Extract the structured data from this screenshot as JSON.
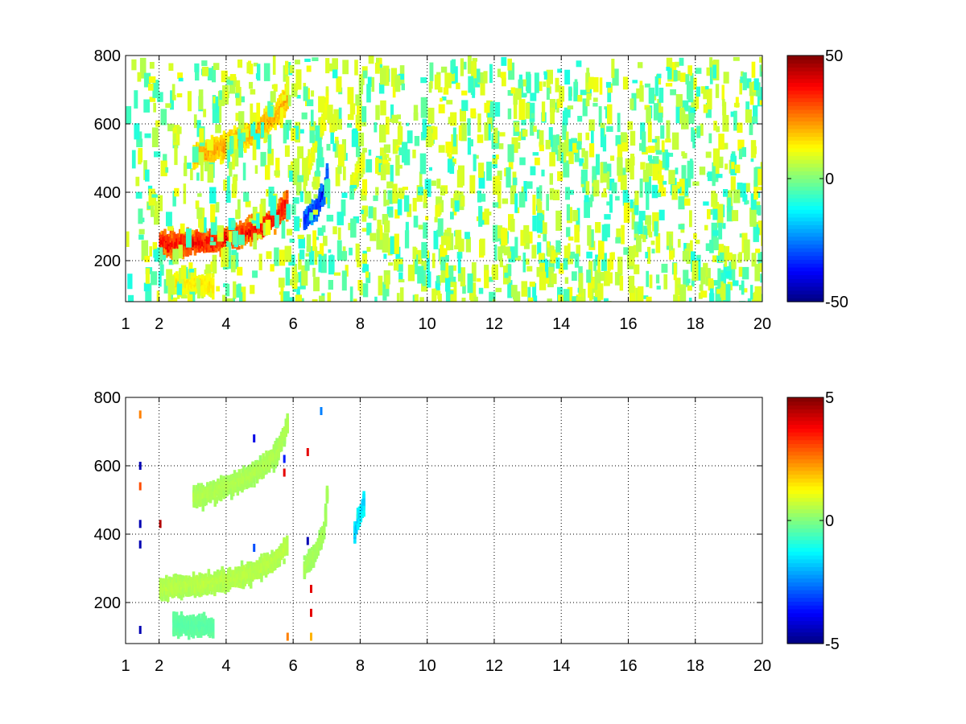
{
  "chart_data": [
    {
      "type": "heatmap",
      "title": "",
      "xlabel": "",
      "ylabel": "",
      "xlim": [
        1,
        20
      ],
      "ylim": [
        80,
        800
      ],
      "xticks": [
        1,
        2,
        4,
        6,
        8,
        10,
        12,
        14,
        16,
        18,
        20
      ],
      "xtick_labels": [
        "1",
        "2",
        "4",
        "6",
        "8",
        "10",
        "12",
        "14",
        "16",
        "18",
        "20"
      ],
      "yticks": [
        200,
        400,
        600,
        800
      ],
      "ytick_labels": [
        "200",
        "400",
        "600",
        "800"
      ],
      "grid": true,
      "colormap": "jet",
      "clim": [
        -50,
        50
      ],
      "colorbar_ticks": [
        -50,
        0,
        50
      ],
      "colorbar_tick_labels": [
        "-50",
        "0",
        "50"
      ],
      "features": [
        {
          "x": [
            2.0,
            2.5,
            3.0,
            3.5,
            4.0,
            4.5,
            5.0,
            5.5,
            5.8
          ],
          "y": [
            250,
            250,
            250,
            255,
            265,
            280,
            300,
            330,
            370
          ],
          "value": 38
        },
        {
          "x": [
            3.0,
            3.5,
            4.0,
            4.5,
            5.0,
            5.5,
            5.8
          ],
          "y": [
            505,
            520,
            540,
            560,
            590,
            630,
            680
          ],
          "value": 22
        },
        {
          "x": [
            2.4,
            2.8,
            3.2,
            3.6
          ],
          "y": [
            135,
            132,
            130,
            130
          ],
          "value": 15
        },
        {
          "x": [
            6.3,
            6.5,
            6.7,
            6.9,
            7.0
          ],
          "y": [
            320,
            340,
            360,
            400,
            460
          ],
          "value": -35
        },
        {
          "x": [
            6.3,
            6.5,
            6.7,
            6.9,
            7.0
          ],
          "y": [
            450,
            500,
            560,
            620,
            700
          ],
          "value": 12
        },
        {
          "x": [
            7.7,
            7.8,
            7.9,
            8.0,
            8.1
          ],
          "y": [
            420,
            440,
            460,
            480,
            500
          ],
          "value": 12
        }
      ],
      "noise_value_range": [
        -10,
        12
      ]
    },
    {
      "type": "heatmap",
      "title": "",
      "xlabel": "",
      "ylabel": "",
      "xlim": [
        1,
        20
      ],
      "ylim": [
        80,
        800
      ],
      "xticks": [
        1,
        2,
        4,
        6,
        8,
        10,
        12,
        14,
        16,
        18,
        20
      ],
      "xtick_labels": [
        "1",
        "2",
        "4",
        "6",
        "8",
        "10",
        "12",
        "14",
        "16",
        "18",
        "20"
      ],
      "yticks": [
        200,
        400,
        600,
        800
      ],
      "ytick_labels": [
        "200",
        "400",
        "600",
        "800"
      ],
      "grid": true,
      "colormap": "jet",
      "clim": [
        -5,
        5
      ],
      "colorbar_ticks": [
        -5,
        0,
        5
      ],
      "colorbar_tick_labels": [
        "-5",
        "0",
        "5"
      ],
      "features": [
        {
          "x": [
            2.0,
            2.5,
            3.0,
            3.5,
            4.0,
            4.5,
            5.0,
            5.5,
            5.8
          ],
          "y": [
            240,
            245,
            250,
            255,
            265,
            280,
            300,
            330,
            370
          ],
          "value": 0.6
        },
        {
          "x": [
            3.0,
            3.5,
            4.0,
            4.5,
            5.0,
            5.5,
            5.8
          ],
          "y": [
            505,
            520,
            540,
            560,
            590,
            640,
            720
          ],
          "value": 0.5
        },
        {
          "x": [
            2.4,
            2.8,
            3.2,
            3.6
          ],
          "y": [
            135,
            132,
            130,
            130
          ],
          "value": -0.4
        },
        {
          "x": [
            6.3,
            6.5,
            6.7,
            6.9,
            7.0
          ],
          "y": [
            300,
            330,
            360,
            420,
            550
          ],
          "value": 0.4
        },
        {
          "x": [
            7.8,
            7.9,
            8.0,
            8.1
          ],
          "y": [
            400,
            440,
            470,
            500
          ],
          "value": -1.8
        }
      ],
      "speckles": [
        {
          "x": 1.4,
          "y": 750,
          "value": 2.5
        },
        {
          "x": 1.4,
          "y": 600,
          "value": -4.5
        },
        {
          "x": 1.4,
          "y": 540,
          "value": 3.0
        },
        {
          "x": 1.4,
          "y": 430,
          "value": -4.5
        },
        {
          "x": 1.4,
          "y": 370,
          "value": -4.5
        },
        {
          "x": 1.4,
          "y": 120,
          "value": -4.5
        },
        {
          "x": 2.0,
          "y": 430,
          "value": 4.5
        },
        {
          "x": 4.8,
          "y": 680,
          "value": -4.0
        },
        {
          "x": 4.8,
          "y": 360,
          "value": -3.0
        },
        {
          "x": 5.7,
          "y": 580,
          "value": 4.0
        },
        {
          "x": 5.7,
          "y": 620,
          "value": -3.5
        },
        {
          "x": 5.8,
          "y": 100,
          "value": 2.5
        },
        {
          "x": 6.4,
          "y": 640,
          "value": 4.0
        },
        {
          "x": 6.4,
          "y": 380,
          "value": -4.5
        },
        {
          "x": 6.5,
          "y": 240,
          "value": 4.0
        },
        {
          "x": 6.5,
          "y": 170,
          "value": 4.0
        },
        {
          "x": 6.5,
          "y": 100,
          "value": 2.0
        },
        {
          "x": 6.8,
          "y": 760,
          "value": -2.5
        }
      ]
    }
  ]
}
